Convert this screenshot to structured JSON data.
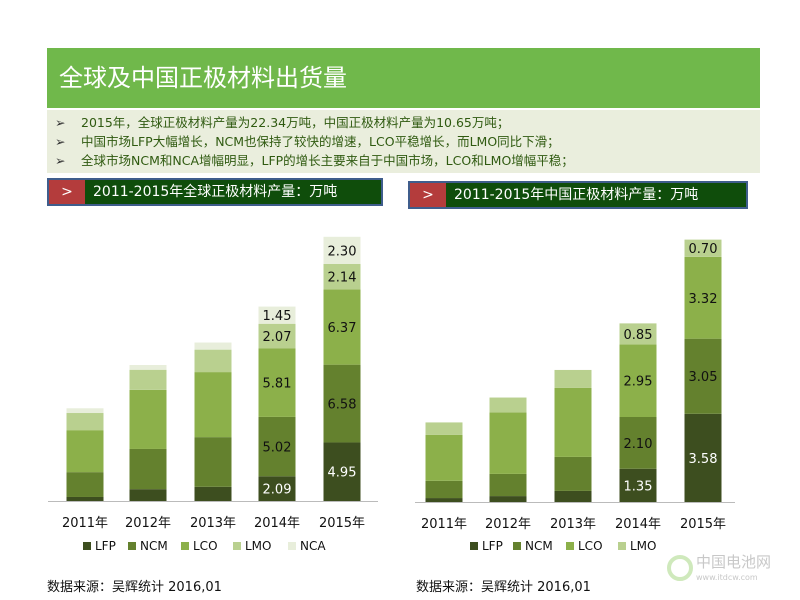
{
  "title": "全球及中国正极材料出货量",
  "bullets": [
    "2015年，全球正极材料产量为22.34万吨，中国正极材料产量为10.65万吨；",
    "中国市场LFP大幅增长，NCM也保持了较快的增速，LCO平稳增长，而LMO同比下滑；",
    "全球市场NCM和NCA增幅明显，LFP的增长主要来自于中国市场，LCO和LMO增幅平稳；"
  ],
  "bullet_marker": "➢",
  "banner_marker": ">",
  "colors": {
    "title_bg": "#70b84b",
    "banner_bg": "#0f4d0b",
    "banner_tag": "#b43c3c",
    "LFP": "#3d4e1f",
    "NCM": "#64812e",
    "LCO": "#8cb04a",
    "LMO": "#b9d08f",
    "NCA": "#e8eedb"
  },
  "source_left": "数据来源：吴辉统计   2016,01",
  "source_right": "数据来源：吴辉统计   2016,01",
  "watermark": {
    "name": "中国电池网",
    "url": "www.itdcw.com"
  },
  "chart_data": [
    {
      "type": "bar",
      "stacked": true,
      "title": "2011-2015年全球正极材料产量：万吨",
      "categories": [
        "2011年",
        "2012年",
        "2013年",
        "2014年",
        "2015年"
      ],
      "ylim": [
        0,
        23
      ],
      "grid": false,
      "legend": "bottom",
      "series": [
        {
          "name": "LFP",
          "values": [
            0.34,
            1.0,
            1.2,
            2.09,
            4.95
          ],
          "labels": [
            "",
            "",
            "",
            "2.09",
            "4.95"
          ]
        },
        {
          "name": "NCM",
          "values": [
            2.1,
            3.4,
            4.2,
            5.02,
            6.58
          ],
          "labels": [
            "",
            "",
            "",
            "5.02",
            "6.58"
          ]
        },
        {
          "name": "LCO",
          "values": [
            3.55,
            5.0,
            5.5,
            5.81,
            6.37
          ],
          "labels": [
            "",
            "",
            "",
            "5.81",
            "6.37"
          ]
        },
        {
          "name": "LMO",
          "values": [
            1.45,
            1.7,
            1.9,
            2.07,
            2.14
          ],
          "labels": [
            "",
            "",
            "",
            "2.07",
            "2.14"
          ]
        },
        {
          "name": "NCA",
          "values": [
            0.4,
            0.4,
            0.6,
            1.45,
            2.3
          ],
          "labels": [
            "",
            "",
            "",
            "1.45",
            "2.30"
          ]
        }
      ]
    },
    {
      "type": "bar",
      "stacked": true,
      "title": "2011-2015年中国正极材料产量：万吨",
      "categories": [
        "2011年",
        "2012年",
        "2013年",
        "2014年",
        "2015年"
      ],
      "ylim": [
        0,
        11
      ],
      "grid": false,
      "legend": "bottom",
      "series": [
        {
          "name": "LFP",
          "values": [
            0.16,
            0.24,
            0.45,
            1.35,
            3.58
          ],
          "labels": [
            "",
            "",
            "",
            "1.35",
            "3.58"
          ]
        },
        {
          "name": "NCM",
          "values": [
            0.7,
            0.9,
            1.38,
            2.1,
            3.05
          ],
          "labels": [
            "",
            "",
            "",
            "2.10",
            "3.05"
          ]
        },
        {
          "name": "LCO",
          "values": [
            1.87,
            2.5,
            2.8,
            2.95,
            3.32
          ],
          "labels": [
            "",
            "",
            "",
            "2.95",
            "3.32"
          ]
        },
        {
          "name": "LMO",
          "values": [
            0.5,
            0.6,
            0.73,
            0.85,
            0.7
          ],
          "labels": [
            "",
            "",
            "",
            "0.85",
            "0.70"
          ]
        }
      ]
    }
  ]
}
